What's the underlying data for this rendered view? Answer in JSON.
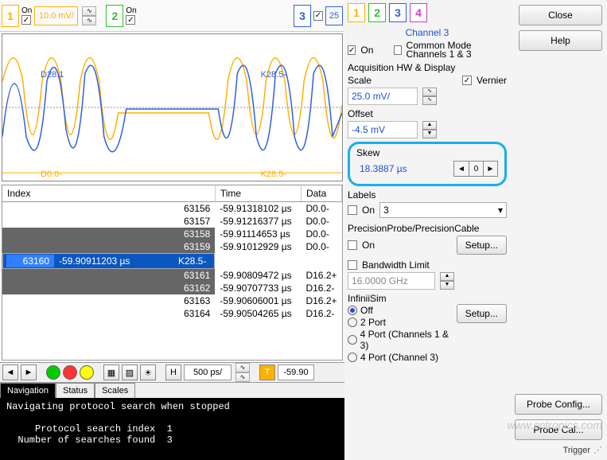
{
  "topbar": {
    "ch1": {
      "num": "1",
      "on": "On",
      "value": "10.0 mV/"
    },
    "ch2": {
      "num": "2",
      "on": "On"
    },
    "ch3": {
      "num": "3",
      "small": "25"
    }
  },
  "waveform": {
    "top_left_label": "D28.1",
    "top_right_label": "K28.5-",
    "bottom_left_label": "D0.0-",
    "bottom_right_label": "K28.5-",
    "colors": {
      "ch1": "#FFB000",
      "ch2": "#3060E0"
    }
  },
  "table": {
    "cols": [
      "Index",
      "Time",
      "Data"
    ],
    "rows": [
      {
        "idx": "63156",
        "time": "-59.91318102 µs",
        "data": "D0.0-",
        "gray": false
      },
      {
        "idx": "63157",
        "time": "-59.91216377 µs",
        "data": "D0.0-",
        "gray": false
      },
      {
        "idx": "63158",
        "time": "-59.91114653 µs",
        "data": "D0.0-",
        "gray": true
      },
      {
        "idx": "63159",
        "time": "-59.91012929 µs",
        "data": "D0.0-",
        "gray": true
      },
      {
        "idx": "63160",
        "time": "-59.90911203 µs",
        "data": "K28.5-",
        "sel": true
      },
      {
        "idx": "63161",
        "time": "-59.90809472 µs",
        "data": "D16.2+",
        "gray": true
      },
      {
        "idx": "63162",
        "time": "-59.90707733 µs",
        "data": "D16.2-",
        "gray": true
      },
      {
        "idx": "63163",
        "time": "-59.90606001 µs",
        "data": "D16.2+",
        "gray": false
      },
      {
        "idx": "63164",
        "time": "-59.90504265 µs",
        "data": "D16.2-",
        "gray": false
      }
    ]
  },
  "toolbar": {
    "H": "H",
    "timebase": "500 ps/",
    "trig": "T",
    "trig_val": "-59.90"
  },
  "tabs": {
    "active": "Navigation",
    "others": [
      "Status",
      "Scales"
    ]
  },
  "console": {
    "line1": "Navigating protocol search when stopped",
    "line2": "     Protocol search index  1",
    "line3": "  Number of searches found  3"
  },
  "right": {
    "close": "Close",
    "help": "Help",
    "nums": [
      "1",
      "2",
      "3",
      "4"
    ],
    "num_colors": [
      "#FFB000",
      "#30C030",
      "#3060E0",
      "#D040C0"
    ],
    "title": "Channel 3",
    "on": "On",
    "common_mode": "Common Mode Channels 1 & 3",
    "acq": "Acquisition HW & Display",
    "scale": "Scale",
    "vernier": "Vernier",
    "scale_val": "25.0 mV/",
    "offset": "Offset",
    "offset_val": "-4.5 mV",
    "skew": "Skew",
    "skew_val": "18.3887 µs",
    "labels": "Labels",
    "labels_sel": "3",
    "pp": "PrecisionProbe/PrecisionCable",
    "setup": "Setup...",
    "bw": "Bandwidth Limit",
    "bw_val": "16.0000 GHz",
    "is": "InfiniiSim",
    "is_opts": [
      "Off",
      "2 Port",
      "4 Port  (Channels 1 & 3)",
      "4 Port  (Channel 3)"
    ],
    "is_sel": 0,
    "probe_config": "Probe Config...",
    "probe_cal": "Probe Cal...",
    "trigger": "Trigger"
  },
  "watermark": "www.cntronics.com"
}
